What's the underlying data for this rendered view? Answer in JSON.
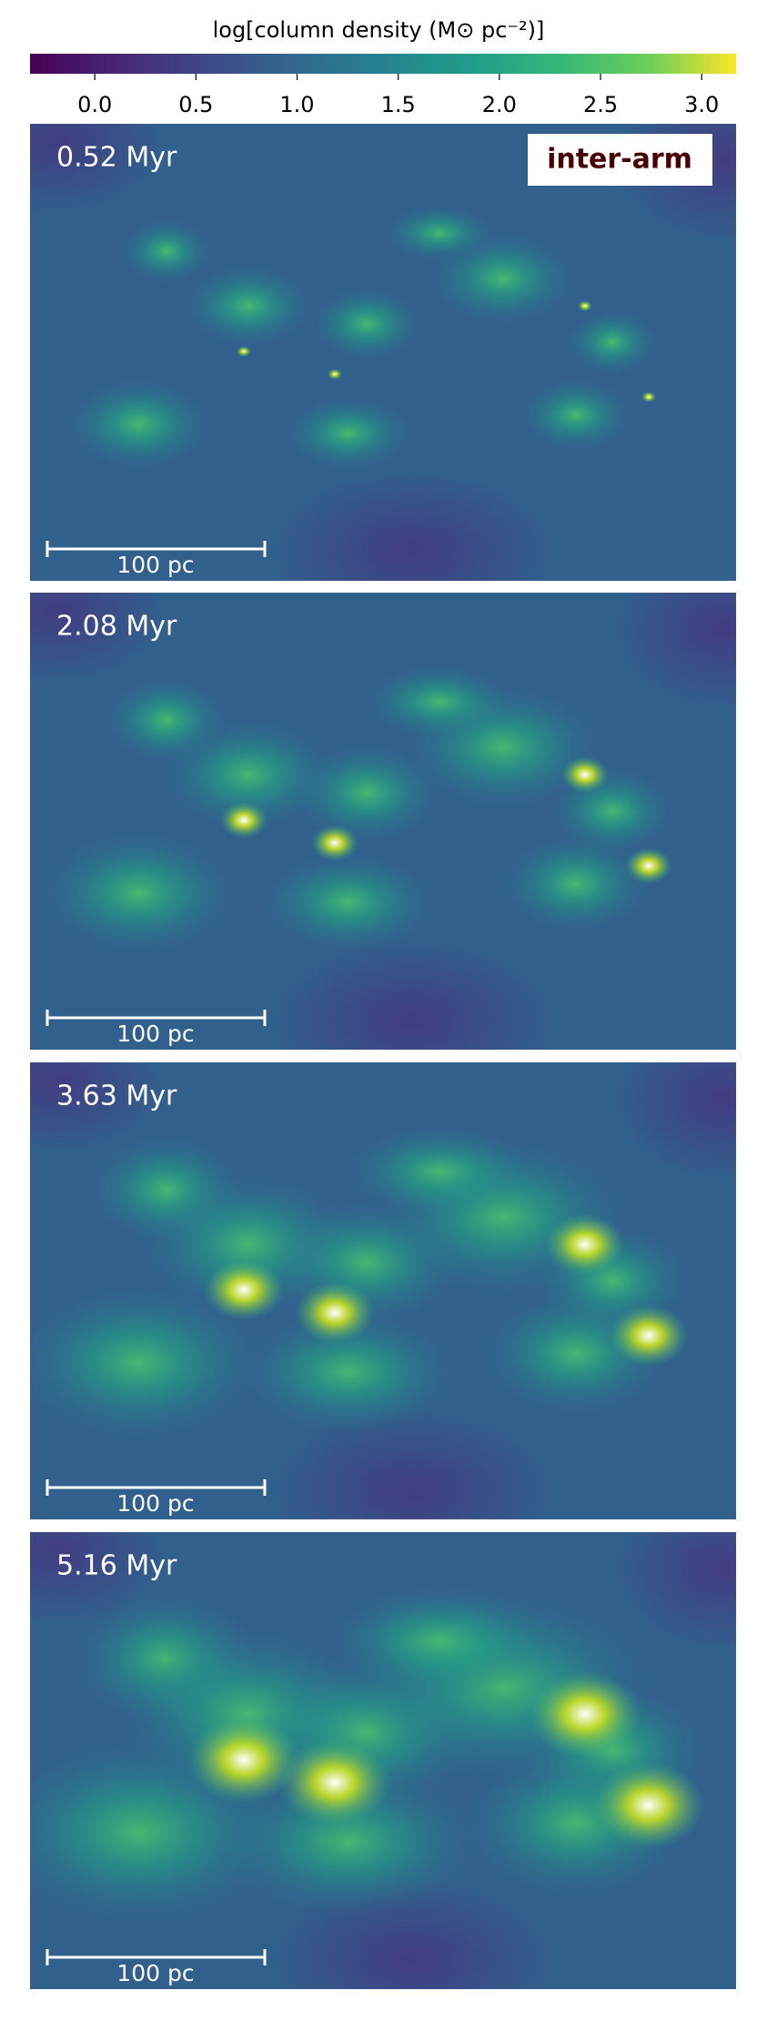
{
  "chart_data": {
    "type": "image-grid",
    "colorbar": {
      "label": "log[column density (M⊙ pc⁻²)]",
      "xlim": [
        -0.32,
        3.17
      ],
      "xticks": [
        {
          "value": 0,
          "label": "0.0"
        },
        0.5,
        {
          "value": 1,
          "label": "1.0"
        },
        1.5,
        {
          "value": 2,
          "label": "2.0"
        },
        2.5,
        {
          "value": 3,
          "label": "3.0"
        }
      ]
    },
    "annotation": "inter-arm",
    "panels": [
      {
        "label": "0.52 Myr",
        "scale_bar": "100 pc"
      },
      {
        "label": "2.08 Myr",
        "scale_bar": "100 pc"
      },
      {
        "label": "3.63 Myr",
        "scale_bar": "100 pc"
      },
      {
        "label": "5.16 Myr",
        "scale_bar": "100 pc"
      }
    ]
  }
}
